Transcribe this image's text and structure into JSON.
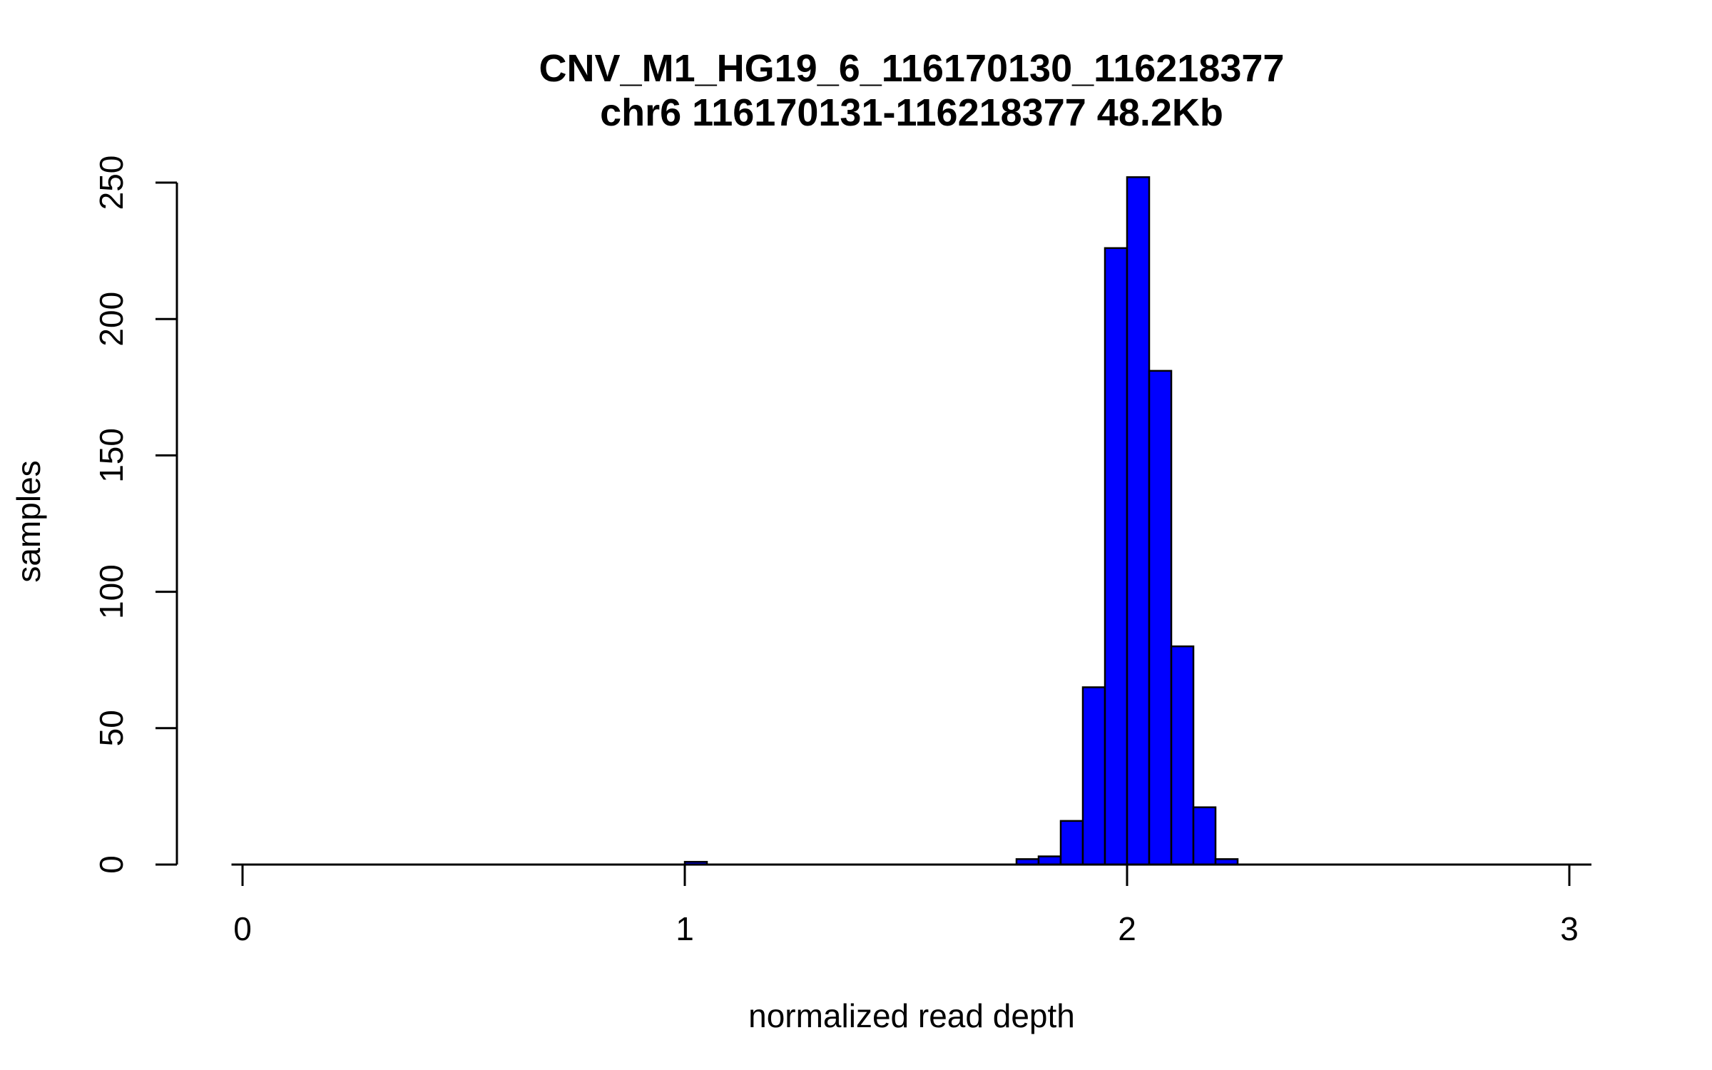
{
  "chart_data": {
    "type": "bar",
    "title": "CNV_M1_HG19_6_116170130_116218377",
    "subtitle": "chr6 116170131-116218377 48.2Kb",
    "xlabel": "normalized read depth",
    "ylabel": "samples",
    "xlim": [
      -0.025,
      3.05
    ],
    "ylim": [
      0,
      252
    ],
    "x_ticks": [
      "0",
      "1",
      "2",
      "3"
    ],
    "y_ticks": [
      "0",
      "50",
      "100",
      "150",
      "200",
      "250"
    ],
    "bin_width": 0.05,
    "bins": [
      {
        "x0": 1.0,
        "x1": 1.05,
        "count": 1
      },
      {
        "x0": 1.75,
        "x1": 1.8,
        "count": 2
      },
      {
        "x0": 1.8,
        "x1": 1.85,
        "count": 3
      },
      {
        "x0": 1.85,
        "x1": 1.9,
        "count": 16
      },
      {
        "x0": 1.9,
        "x1": 1.95,
        "count": 65
      },
      {
        "x0": 1.95,
        "x1": 2.0,
        "count": 226
      },
      {
        "x0": 2.0,
        "x1": 2.05,
        "count": 252
      },
      {
        "x0": 2.05,
        "x1": 2.1,
        "count": 181
      },
      {
        "x0": 2.1,
        "x1": 2.15,
        "count": 80
      },
      {
        "x0": 2.15,
        "x1": 2.2,
        "count": 21
      },
      {
        "x0": 2.2,
        "x1": 2.25,
        "count": 2
      }
    ],
    "bar_color": "#0000ff",
    "grid": false,
    "legend": "none"
  }
}
